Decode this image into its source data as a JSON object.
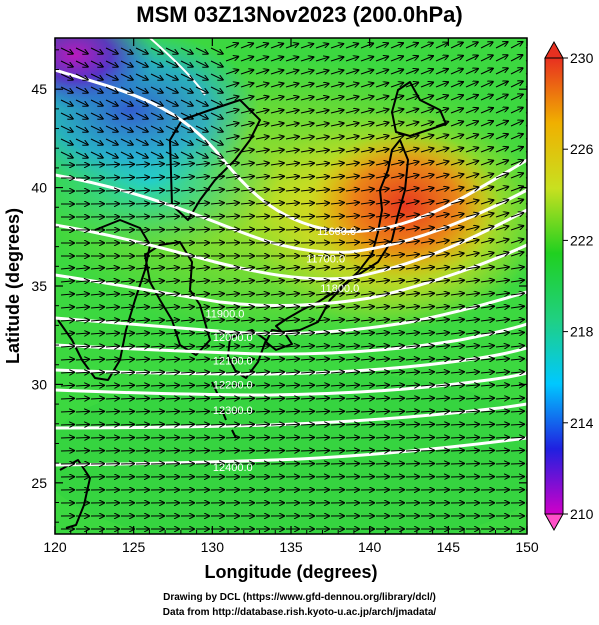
{
  "title": "MSM 03Z13Nov2023 (200.0hPa)",
  "x_axis": {
    "label": "Longitude (degrees)",
    "ticks": [
      "120",
      "125",
      "130",
      "135",
      "140",
      "145",
      "150"
    ],
    "range": [
      120,
      150
    ]
  },
  "y_axis": {
    "label": "Latitude  (degrees)",
    "ticks": [
      "25",
      "30",
      "35",
      "40",
      "45"
    ],
    "range": [
      22.4,
      47.6
    ]
  },
  "colorbar": {
    "ticks": [
      "210",
      "214",
      "218",
      "222",
      "226",
      "230"
    ],
    "range": [
      210,
      230
    ],
    "colors": [
      "#d000c8",
      "#2020e0",
      "#00c8ff",
      "#20d080",
      "#20d020",
      "#c8e020",
      "#f0b000",
      "#e83020"
    ]
  },
  "contours": {
    "color": "#ffffff",
    "labels": [
      {
        "text": "11600.0",
        "lon": 137.9,
        "lat": 37.6
      },
      {
        "text": "11700.0",
        "lon": 137.2,
        "lat": 36.2
      },
      {
        "text": "11800.0",
        "lon": 138.1,
        "lat": 34.7
      },
      {
        "text": "11900.0",
        "lon": 130.8,
        "lat": 33.4
      },
      {
        "text": "12000.0",
        "lon": 131.3,
        "lat": 32.2
      },
      {
        "text": "12100.0",
        "lon": 131.3,
        "lat": 31.0
      },
      {
        "text": "12200.0",
        "lon": 131.3,
        "lat": 29.8
      },
      {
        "text": "12300.0",
        "lon": 131.3,
        "lat": 28.5
      },
      {
        "text": "12400.0",
        "lon": 131.3,
        "lat": 25.6
      }
    ]
  },
  "footer": {
    "line1": "Drawing by DCL (https://www.gfd-dennou.org/library/dcl/)",
    "line2": "Data from http://database.rish.kyoto-u.ac.jp/arch/jmadata/"
  }
}
